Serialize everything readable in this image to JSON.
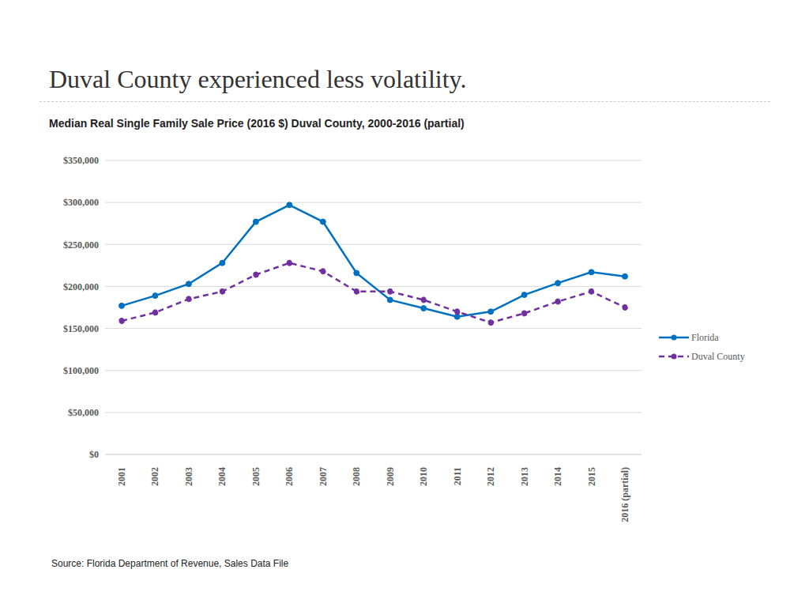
{
  "chart_data": {
    "type": "line",
    "title": "Duval County experienced less volatility.",
    "subtitle": "Median Real Single Family Sale Price (2016 $) Duval County, 2000-2016 (partial)",
    "source": "Source: Florida Department of Revenue, Sales Data File",
    "categories": [
      "2001",
      "2002",
      "2003",
      "2004",
      "2005",
      "2006",
      "2007",
      "2008",
      "2009",
      "2010",
      "2011",
      "2012",
      "2013",
      "2014",
      "2015",
      "2016 (partial)"
    ],
    "series": [
      {
        "name": "Florida",
        "color": "#0070c0",
        "marker": "circle",
        "line_style": "solid",
        "values": [
          177000,
          189000,
          203000,
          228000,
          277000,
          297000,
          277000,
          216000,
          184000,
          174000,
          164000,
          170000,
          190000,
          204000,
          217000,
          212000
        ]
      },
      {
        "name": "Duval County",
        "color": "#7030a0",
        "marker": "circle",
        "line_style": "dashed",
        "values": [
          159000,
          169000,
          185000,
          194000,
          214000,
          228000,
          218000,
          194000,
          194000,
          184000,
          170000,
          157000,
          168000,
          182000,
          194000,
          175000
        ]
      }
    ],
    "ylim": [
      0,
      350000
    ],
    "yticks": [
      {
        "value": 0,
        "label": "$0"
      },
      {
        "value": 50000,
        "label": "$50,000"
      },
      {
        "value": 100000,
        "label": "$100,000"
      },
      {
        "value": 150000,
        "label": "$150,000"
      },
      {
        "value": 200000,
        "label": "$200,000"
      },
      {
        "value": 250000,
        "label": "$250,000"
      },
      {
        "value": 300000,
        "label": "$300,000"
      },
      {
        "value": 350000,
        "label": "$350,000"
      }
    ],
    "grid": true,
    "legend": "right"
  }
}
